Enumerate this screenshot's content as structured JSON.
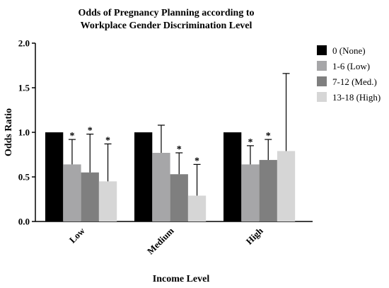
{
  "chart_data": {
    "type": "bar",
    "title_line1": "Odds of Pregnancy Planning according to",
    "title_line2": "Workplace Gender Discrimination Level",
    "xlabel": "Income  Level",
    "ylabel": "Odds Ratio",
    "ylim": [
      0,
      2.0
    ],
    "yticks": [
      "0.0",
      "0.5",
      "1.0",
      "1.5",
      "2.0"
    ],
    "categories": [
      "Low",
      "Medium",
      "High"
    ],
    "significance_marker": "*",
    "legend_position": "right",
    "series": [
      {
        "name": "0 (None)",
        "color": "#000000",
        "values": [
          1.0,
          1.0,
          1.0
        ],
        "err_upper": [
          null,
          null,
          null
        ],
        "significant": [
          false,
          false,
          false
        ]
      },
      {
        "name": "1-6 (Low)",
        "color": "#a6a6a8",
        "values": [
          0.64,
          0.77,
          0.64
        ],
        "err_upper": [
          0.92,
          1.08,
          0.85
        ],
        "significant": [
          true,
          false,
          true
        ]
      },
      {
        "name": "7-12 (Med.)",
        "color": "#7f7f7f",
        "values": [
          0.55,
          0.53,
          0.69
        ],
        "err_upper": [
          0.98,
          0.77,
          0.92
        ],
        "significant": [
          true,
          true,
          true
        ]
      },
      {
        "name": "13-18 (High)",
        "color": "#d6d6d6",
        "values": [
          0.45,
          0.29,
          0.79
        ],
        "err_upper": [
          0.87,
          0.64,
          1.66
        ],
        "significant": [
          true,
          true,
          false
        ]
      }
    ]
  }
}
